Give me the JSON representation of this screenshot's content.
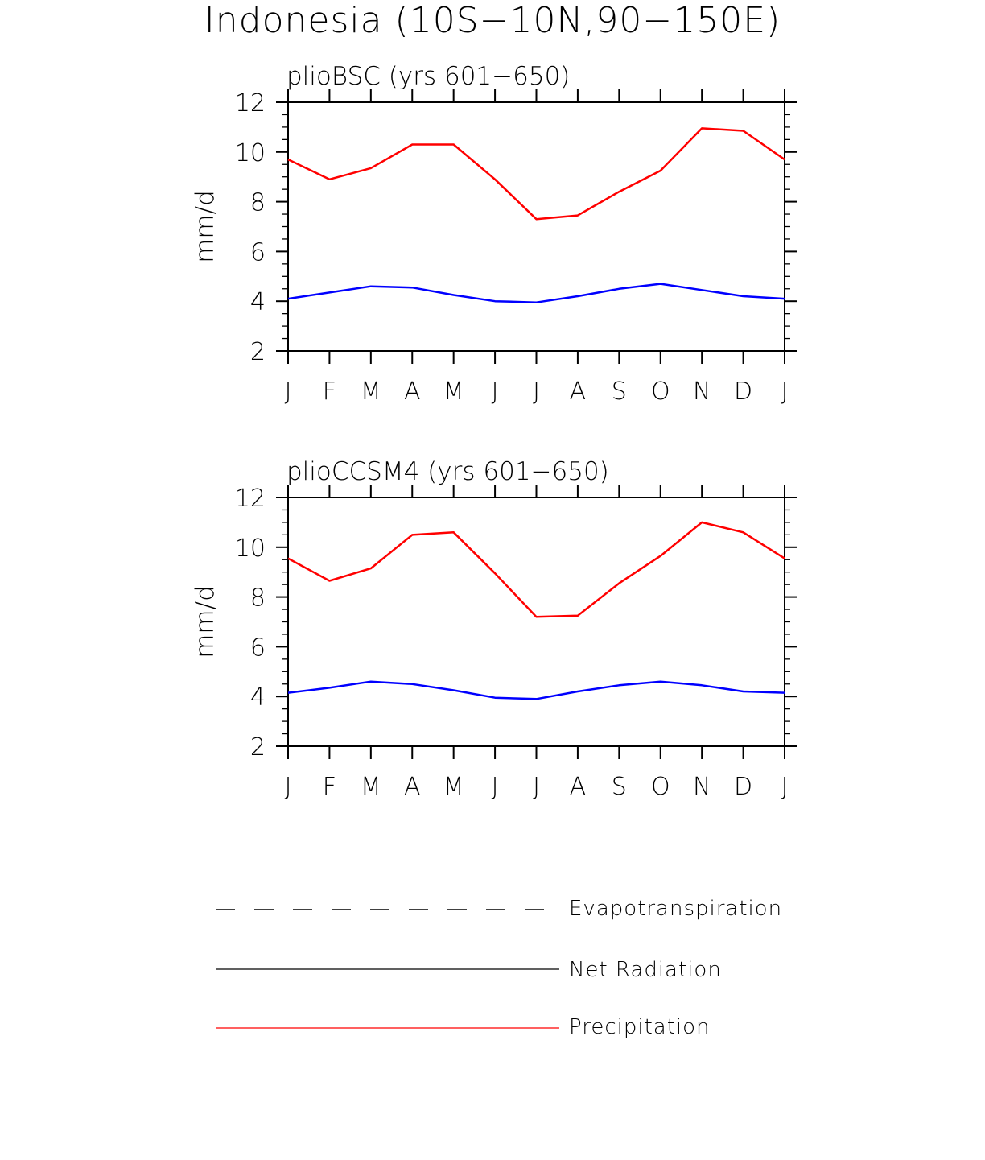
{
  "title": "Indonesia (10S−10N,90−150E)",
  "legend": {
    "items": [
      {
        "label": "Evapotranspiration",
        "style": "dashed",
        "color": "#000000"
      },
      {
        "label": "Net Radiation",
        "style": "solid",
        "color": "#000000"
      },
      {
        "label": "Precipitation",
        "style": "solid",
        "color": "#ff0000"
      }
    ]
  },
  "chart_data": [
    {
      "type": "line",
      "title": "plioBSC (yrs 601−650)",
      "ylabel": "mm/d",
      "xlabel": "",
      "ylim": [
        2,
        12
      ],
      "yticks": [
        "2",
        "4",
        "6",
        "8",
        "10",
        "12"
      ],
      "categories": [
        "J",
        "F",
        "M",
        "A",
        "M",
        "J",
        "J",
        "A",
        "S",
        "O",
        "N",
        "D",
        "J"
      ],
      "series": [
        {
          "name": "Precipitation",
          "color": "#ff0000",
          "values": [
            9.7,
            8.9,
            9.35,
            10.3,
            10.3,
            8.9,
            7.3,
            7.45,
            8.4,
            9.25,
            10.95,
            10.85,
            9.7
          ]
        },
        {
          "name": "Net Radiation",
          "color": "#0000ff",
          "values": [
            4.1,
            4.35,
            4.6,
            4.55,
            4.25,
            4.0,
            3.95,
            4.2,
            4.5,
            4.7,
            4.45,
            4.2,
            4.1
          ]
        }
      ]
    },
    {
      "type": "line",
      "title": "plioCCSM4 (yrs 601−650)",
      "ylabel": "mm/d",
      "xlabel": "",
      "ylim": [
        2,
        12
      ],
      "yticks": [
        "2",
        "4",
        "6",
        "8",
        "10",
        "12"
      ],
      "categories": [
        "J",
        "F",
        "M",
        "A",
        "M",
        "J",
        "J",
        "A",
        "S",
        "O",
        "N",
        "D",
        "J"
      ],
      "series": [
        {
          "name": "Precipitation",
          "color": "#ff0000",
          "values": [
            9.55,
            8.65,
            9.15,
            10.5,
            10.6,
            8.95,
            7.2,
            7.25,
            8.55,
            9.65,
            11.0,
            10.6,
            9.55
          ]
        },
        {
          "name": "Net Radiation",
          "color": "#0000ff",
          "values": [
            4.15,
            4.35,
            4.6,
            4.5,
            4.25,
            3.95,
            3.9,
            4.2,
            4.45,
            4.6,
            4.45,
            4.2,
            4.15
          ]
        }
      ]
    }
  ]
}
